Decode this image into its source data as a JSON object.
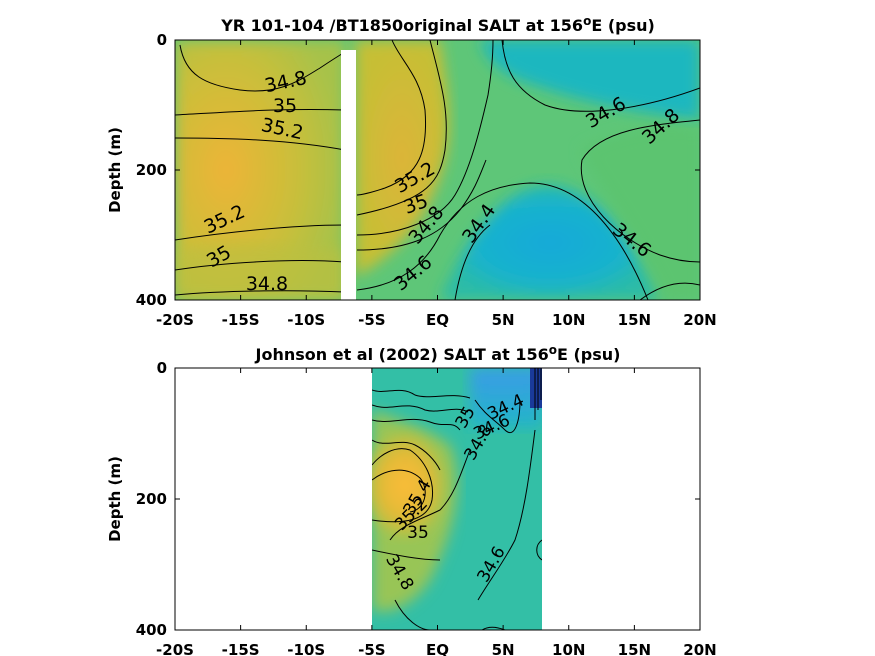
{
  "chart_data": [
    {
      "type": "heatmap",
      "title_main": "YR 101-104 /BT1850original SALT at 156",
      "title_sup": "o",
      "title_end": "E (psu)",
      "xlabel": "",
      "ylabel": "Depth (m)",
      "xlim": [
        -20,
        20
      ],
      "ylim": [
        0,
        400
      ],
      "y_reversed": true,
      "x_ticks": [
        -20,
        -15,
        -10,
        -5,
        0,
        5,
        10,
        15,
        20
      ],
      "x_tick_labels": [
        "-20S",
        "-15S",
        "-10S",
        "-5S",
        "EQ",
        "5N",
        "10N",
        "15N",
        "20N"
      ],
      "y_ticks": [
        0,
        200,
        400
      ],
      "y_tick_labels": [
        "0",
        "200",
        "400"
      ],
      "gap_lat_range": [
        -7.3,
        -6.3
      ],
      "contour_labels": [
        "34.8",
        "35",
        "35.2",
        "35.2",
        "35",
        "34.8",
        "35.2",
        "35",
        "34.8",
        "34.4",
        "34.6",
        "34.6",
        "34.8",
        "34.6"
      ]
    },
    {
      "type": "heatmap",
      "title_main": "Johnson et al (2002) SALT at 156",
      "title_sup": "o",
      "title_end": "E (psu)",
      "xlabel": "",
      "ylabel": "Depth (m)",
      "xlim": [
        -20,
        20
      ],
      "ylim": [
        0,
        400
      ],
      "y_reversed": true,
      "data_lat_range": [
        -5,
        8
      ],
      "x_ticks": [
        -20,
        -15,
        -10,
        -5,
        0,
        5,
        10,
        15,
        20
      ],
      "x_tick_labels": [
        "-20S",
        "-15S",
        "-10S",
        "-5S",
        "EQ",
        "5N",
        "10N",
        "15N",
        "20N"
      ],
      "y_ticks": [
        0,
        200,
        400
      ],
      "y_tick_labels": [
        "0",
        "200",
        "400"
      ],
      "contour_labels": [
        "34.4",
        "34.6",
        "34.8",
        "35.4",
        "35.2",
        "35",
        "34.8",
        "34.6",
        "35"
      ]
    }
  ]
}
